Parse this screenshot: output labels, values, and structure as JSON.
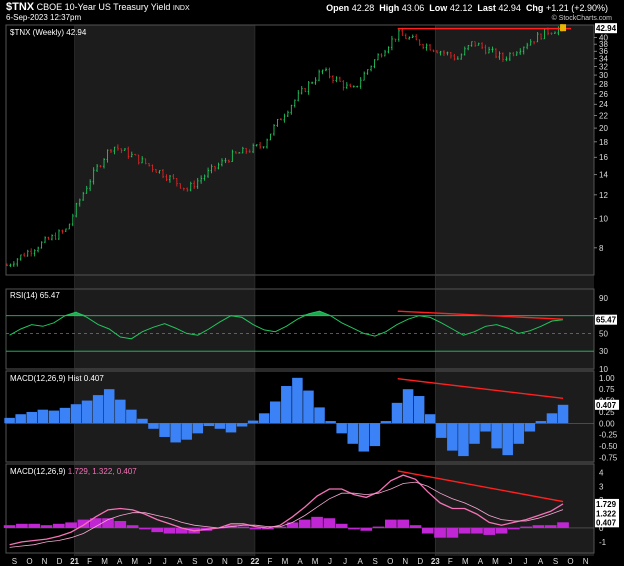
{
  "header": {
    "ticker": "$TNX",
    "name": "CBOE 10-Year US Treasury Yield",
    "exchange": "INDX",
    "date": "6-Sep-2023 12:37pm",
    "open_label": "Open",
    "open": "42.28",
    "high_label": "High",
    "high": "43.06",
    "low_label": "Low",
    "low": "42.12",
    "last_label": "Last",
    "last": "42.94",
    "chg_label": "Chg",
    "chg": "+1.21 (+2.90%)",
    "watermark": "© StockCharts.com"
  },
  "colors": {
    "up": "#22c55e",
    "down": "#dc2626",
    "shade": "#1c1c1c",
    "rsi": "#22c55e",
    "macd_hist": "#3b82f6",
    "ppo_line": "#f472b6",
    "ppo_hist": "#c026d3",
    "trend": "#ff2020"
  },
  "chart_data": [
    {
      "type": "candlestick",
      "panel": "price",
      "legend": "$TNX (Weekly) 42.94",
      "last_value": "42.94",
      "y_scale": "log",
      "ylim": [
        6.5,
        44
      ],
      "y_ticks": [
        "40",
        "38",
        "36",
        "34",
        "32",
        "30",
        "28",
        "26",
        "24",
        "22",
        "20",
        "18",
        "16",
        "14",
        "12",
        "10",
        "8"
      ],
      "x_ticks": [
        "S",
        "O",
        "N",
        "D",
        "21",
        "F",
        "M",
        "A",
        "M",
        "J",
        "J",
        "A",
        "S",
        "O",
        "N",
        "D",
        "22",
        "F",
        "M",
        "A",
        "M",
        "J",
        "J",
        "A",
        "S",
        "O",
        "N",
        "D",
        "23",
        "F",
        "M",
        "A",
        "M",
        "J",
        "J",
        "A",
        "S",
        "O",
        "N"
      ],
      "x_year_ticks": [
        "21",
        "22",
        "23"
      ],
      "key_points": [
        [
          "2020-08",
          7.0
        ],
        [
          "2020-12",
          9.2
        ],
        [
          "2021-03",
          17.5
        ],
        [
          "2021-08",
          12.5
        ],
        [
          "2021-11",
          16.2
        ],
        [
          "2022-01",
          17.5
        ],
        [
          "2022-05",
          31.0
        ],
        [
          "2022-07",
          26.5
        ],
        [
          "2022-10",
          41.0
        ],
        [
          "2023-02",
          34.0
        ],
        [
          "2023-03",
          38.5
        ],
        [
          "2023-05",
          34.0
        ],
        [
          "2023-08",
          42.0
        ],
        [
          "2023-09",
          42.94
        ]
      ],
      "resistance_line": {
        "from": [
          "2022-10",
          42.8
        ],
        "to": [
          "2023-09",
          42.8
        ]
      }
    },
    {
      "type": "line",
      "panel": "rsi",
      "legend": "RSI(14) 65.47",
      "last_value": "65.47",
      "ylim": [
        10,
        100
      ],
      "y_ticks": [
        "90",
        "50",
        "30",
        "10"
      ],
      "bands": [
        70,
        50,
        30
      ],
      "values": [
        48,
        55,
        60,
        58,
        62,
        70,
        74,
        68,
        60,
        55,
        46,
        44,
        52,
        57,
        61,
        56,
        50,
        48,
        55,
        63,
        70,
        68,
        60,
        54,
        52,
        58,
        66,
        72,
        75,
        70,
        62,
        56,
        50,
        47,
        52,
        60,
        66,
        70,
        68,
        62,
        55,
        48,
        52,
        58,
        60,
        56,
        50,
        53,
        58,
        64,
        65.47
      ],
      "divergence_line": {
        "from": [
          "2022-10",
          75
        ],
        "to": [
          "2023-09",
          66
        ]
      }
    },
    {
      "type": "bar",
      "panel": "macd",
      "legend": "MACD(12,26,9) Hist 0.407",
      "last_value": "0.407",
      "ylim": [
        -0.85,
        1.15
      ],
      "y_ticks": [
        "1.00",
        "0.75",
        "0.50",
        "0.25",
        "0.00",
        "-0.25",
        "-0.50",
        "-0.75"
      ],
      "values": [
        0.12,
        0.2,
        0.25,
        0.3,
        0.28,
        0.34,
        0.42,
        0.5,
        0.62,
        0.75,
        0.52,
        0.3,
        0.1,
        -0.12,
        -0.3,
        -0.42,
        -0.36,
        -0.22,
        -0.06,
        -0.12,
        -0.2,
        -0.07,
        0.06,
        0.22,
        0.48,
        0.82,
        1.0,
        0.72,
        0.35,
        0.05,
        -0.22,
        -0.45,
        -0.62,
        -0.5,
        0.05,
        0.45,
        0.75,
        0.6,
        0.2,
        -0.32,
        -0.6,
        -0.72,
        -0.45,
        -0.18,
        -0.55,
        -0.7,
        -0.45,
        -0.18,
        0.05,
        0.22,
        0.407
      ],
      "divergence_line": {
        "from": [
          "2022-10",
          0.98
        ],
        "to": [
          "2023-09",
          0.55
        ]
      }
    },
    {
      "type": "line",
      "panel": "ppo",
      "legend": "MACD(12,26,9) 1.729, 1.322, 0.407",
      "values_label": "1.729, 1.322, 0.407",
      "ylim": [
        -1.8,
        4.6
      ],
      "y_ticks": [
        "4",
        "3",
        "2",
        "1",
        "0",
        "-1"
      ],
      "last_values": [
        "1.729",
        "1.322",
        "0.407"
      ],
      "series": [
        {
          "values": [
            -1.2,
            -1.0,
            -0.9,
            -0.8,
            -0.6,
            -0.3,
            0.2,
            0.8,
            1.3,
            1.4,
            1.3,
            1.0,
            0.6,
            0.3,
            0.0,
            -0.2,
            -0.1,
            0.0,
            0.3,
            0.3,
            0.1,
            0.0,
            0.2,
            0.8,
            1.5,
            2.3,
            2.8,
            2.8,
            2.4,
            2.2,
            2.6,
            3.4,
            3.8,
            3.5,
            2.6,
            1.8,
            1.4,
            1.4,
            1.0,
            0.4,
            0.2,
            0.4,
            0.6,
            0.9,
            1.2,
            1.729
          ]
        },
        {
          "values": [
            -1.4,
            -1.3,
            -1.2,
            -1.0,
            -0.9,
            -0.7,
            -0.4,
            0.1,
            0.6,
            0.9,
            1.1,
            1.1,
            0.9,
            0.7,
            0.4,
            0.2,
            0.1,
            0.0,
            0.1,
            0.2,
            0.2,
            0.1,
            0.1,
            0.4,
            0.9,
            1.5,
            2.1,
            2.5,
            2.5,
            2.4,
            2.5,
            2.8,
            3.2,
            3.3,
            3.0,
            2.5,
            2.1,
            1.8,
            1.4,
            0.9,
            0.6,
            0.5,
            0.5,
            0.7,
            1.0,
            1.322
          ]
        },
        {
          "values": [
            0.2,
            0.3,
            0.3,
            0.2,
            0.3,
            0.4,
            0.6,
            0.7,
            0.7,
            0.5,
            0.2,
            -0.1,
            -0.3,
            -0.4,
            -0.4,
            -0.4,
            -0.2,
            0.0,
            0.2,
            0.1,
            -0.1,
            -0.1,
            0.1,
            0.4,
            0.6,
            0.8,
            0.7,
            0.3,
            -0.1,
            -0.2,
            0.1,
            0.6,
            0.6,
            0.2,
            -0.4,
            -0.7,
            -0.7,
            -0.4,
            -0.4,
            -0.5,
            -0.4,
            -0.1,
            0.1,
            0.2,
            0.2,
            0.407
          ]
        }
      ],
      "divergence_line": {
        "from": [
          "2022-10",
          4.1
        ],
        "to": [
          "2023-09",
          1.9
        ]
      }
    }
  ]
}
